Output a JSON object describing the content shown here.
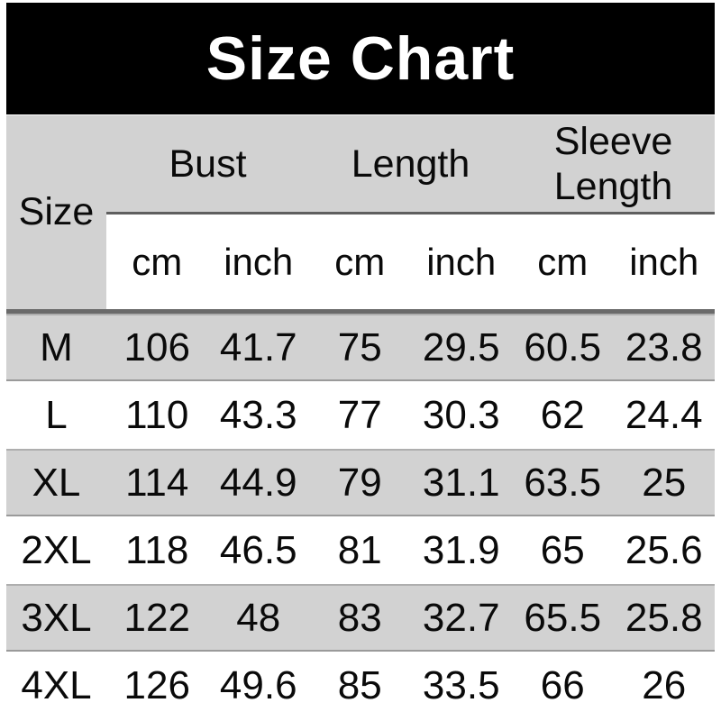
{
  "title": "Size Chart",
  "table": {
    "size_header": "Size",
    "groups": {
      "bust": "Bust",
      "length": "Length",
      "sleeve_line1": "Sleeve",
      "sleeve_line2": "Length"
    },
    "units": [
      "cm",
      "inch",
      "cm",
      "inch",
      "cm",
      "inch"
    ],
    "rows": [
      {
        "size": "M",
        "values": [
          "106",
          "41.7",
          "75",
          "29.5",
          "60.5",
          "23.8"
        ]
      },
      {
        "size": "L",
        "values": [
          "110",
          "43.3",
          "77",
          "30.3",
          "62",
          "24.4"
        ]
      },
      {
        "size": "XL",
        "values": [
          "114",
          "44.9",
          "79",
          "31.1",
          "63.5",
          "25"
        ]
      },
      {
        "size": "2XL",
        "values": [
          "118",
          "46.5",
          "81",
          "31.9",
          "65",
          "25.6"
        ]
      },
      {
        "size": "3XL",
        "values": [
          "122",
          "48",
          "83",
          "32.7",
          "65.5",
          "25.8"
        ]
      },
      {
        "size": "4XL",
        "values": [
          "126",
          "49.6",
          "85",
          "33.5",
          "66",
          "26"
        ]
      }
    ]
  },
  "colors": {
    "banner_bg": "#000000",
    "banner_text": "#ffffff",
    "header_bg": "#d2d2d2",
    "row_shaded_bg": "#d2d2d2",
    "separator": "#6a6a6a",
    "text": "#0a0a0a"
  },
  "chart_data": {
    "type": "table",
    "title": "Size Chart",
    "columns": [
      "Size",
      "Bust cm",
      "Bust inch",
      "Length cm",
      "Length inch",
      "Sleeve Length cm",
      "Sleeve Length inch"
    ],
    "rows": [
      [
        "M",
        106,
        41.7,
        75,
        29.5,
        60.5,
        23.8
      ],
      [
        "L",
        110,
        43.3,
        77,
        30.3,
        62,
        24.4
      ],
      [
        "XL",
        114,
        44.9,
        79,
        31.1,
        63.5,
        25
      ],
      [
        "2XL",
        118,
        46.5,
        81,
        31.9,
        65,
        25.6
      ],
      [
        "3XL",
        122,
        48,
        83,
        32.7,
        65.5,
        25.8
      ],
      [
        "4XL",
        126,
        49.6,
        85,
        33.5,
        66,
        26
      ]
    ]
  }
}
